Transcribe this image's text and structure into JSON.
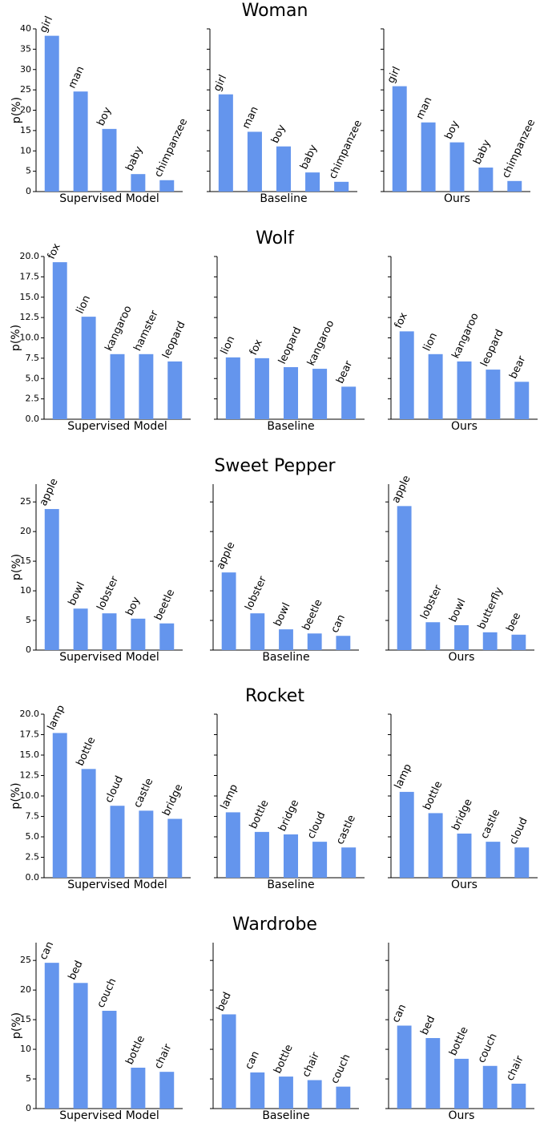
{
  "colors": {
    "bar": "#6495ED"
  },
  "chart_data": [
    {
      "title": "Woman",
      "type": "bar",
      "ylabel": "p(%)",
      "yticks": [
        "0",
        "5",
        "10",
        "15",
        "20",
        "25",
        "30",
        "35",
        "40"
      ],
      "ylim": [
        0,
        40
      ],
      "panels": [
        {
          "xlabel": "Supervised Model",
          "categories": [
            "girl",
            "man",
            "boy",
            "baby",
            "chimpanzee"
          ],
          "values": [
            38.3,
            24.6,
            15.4,
            4.3,
            2.8
          ]
        },
        {
          "xlabel": "Baseline",
          "categories": [
            "girl",
            "man",
            "boy",
            "baby",
            "chimpanzee"
          ],
          "values": [
            23.9,
            14.7,
            11.1,
            4.7,
            2.4
          ]
        },
        {
          "xlabel": "Ours",
          "categories": [
            "girl",
            "man",
            "boy",
            "baby",
            "chimpanzee"
          ],
          "values": [
            25.9,
            17.0,
            12.1,
            5.9,
            2.6
          ]
        }
      ]
    },
    {
      "title": "Wolf",
      "type": "bar",
      "ylabel": "p(%)",
      "yticks": [
        "0.0",
        "2.5",
        "5.0",
        "7.5",
        "10.0",
        "12.5",
        "15.0",
        "17.5",
        "20.0"
      ],
      "ylim": [
        0,
        20
      ],
      "panels": [
        {
          "xlabel": "Supervised Model",
          "categories": [
            "fox",
            "lion",
            "kangaroo",
            "hamster",
            "leopard"
          ],
          "values": [
            19.3,
            12.6,
            8.0,
            8.0,
            7.1
          ]
        },
        {
          "xlabel": "Baseline",
          "categories": [
            "lion",
            "fox",
            "leopard",
            "kangaroo",
            "bear"
          ],
          "values": [
            7.6,
            7.5,
            6.4,
            6.2,
            4.0
          ]
        },
        {
          "xlabel": "Ours",
          "categories": [
            "fox",
            "lion",
            "kangaroo",
            "leopard",
            "bear"
          ],
          "values": [
            10.8,
            8.0,
            7.1,
            6.1,
            4.6
          ]
        }
      ]
    },
    {
      "title": "Sweet Pepper",
      "type": "bar",
      "ylabel": "p(%)",
      "yticks": [
        "0",
        "5",
        "10",
        "15",
        "20",
        "25"
      ],
      "ylim": [
        0,
        28
      ],
      "panels": [
        {
          "xlabel": "Supervised Model",
          "categories": [
            "apple",
            "bowl",
            "lobster",
            "boy",
            "beetle"
          ],
          "values": [
            23.8,
            7.0,
            6.2,
            5.3,
            4.5
          ]
        },
        {
          "xlabel": "Baseline",
          "categories": [
            "apple",
            "lobster",
            "bowl",
            "beetle",
            "can"
          ],
          "values": [
            13.1,
            6.2,
            3.5,
            2.8,
            2.4
          ]
        },
        {
          "xlabel": "Ours",
          "categories": [
            "apple",
            "lobster",
            "bowl",
            "butterfly",
            "bee"
          ],
          "values": [
            24.3,
            4.7,
            4.2,
            3.0,
            2.6
          ]
        }
      ]
    },
    {
      "title": "Rocket",
      "type": "bar",
      "ylabel": "p(%)",
      "yticks": [
        "0.0",
        "2.5",
        "5.0",
        "7.5",
        "10.0",
        "12.5",
        "15.0",
        "17.5",
        "20.0"
      ],
      "ylim": [
        0,
        20
      ],
      "panels": [
        {
          "xlabel": "Supervised Model",
          "categories": [
            "lamp",
            "bottle",
            "cloud",
            "castle",
            "bridge"
          ],
          "values": [
            17.7,
            13.3,
            8.8,
            8.2,
            7.2
          ]
        },
        {
          "xlabel": "Baseline",
          "categories": [
            "lamp",
            "bottle",
            "bridge",
            "cloud",
            "castle"
          ],
          "values": [
            8.0,
            5.6,
            5.3,
            4.4,
            3.7
          ]
        },
        {
          "xlabel": "Ours",
          "categories": [
            "lamp",
            "bottle",
            "bridge",
            "castle",
            "cloud"
          ],
          "values": [
            10.5,
            7.9,
            5.4,
            4.4,
            3.7
          ]
        }
      ]
    },
    {
      "title": "Wardrobe",
      "type": "bar",
      "ylabel": "p(%)",
      "yticks": [
        "0",
        "5",
        "10",
        "15",
        "20",
        "25"
      ],
      "ylim": [
        0,
        28
      ],
      "panels": [
        {
          "xlabel": "Supervised Model",
          "categories": [
            "can",
            "bed",
            "couch",
            "bottle",
            "chair"
          ],
          "values": [
            24.6,
            21.2,
            16.5,
            6.9,
            6.2
          ]
        },
        {
          "xlabel": "Baseline",
          "categories": [
            "bed",
            "can",
            "bottle",
            "chair",
            "couch"
          ],
          "values": [
            15.9,
            6.1,
            5.4,
            4.8,
            3.7
          ]
        },
        {
          "xlabel": "Ours",
          "categories": [
            "can",
            "bed",
            "bottle",
            "couch",
            "chair"
          ],
          "values": [
            14.0,
            11.9,
            8.4,
            7.2,
            4.2
          ]
        }
      ]
    }
  ]
}
